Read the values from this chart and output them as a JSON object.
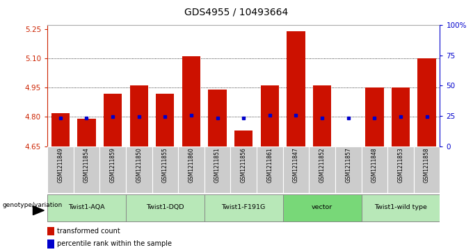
{
  "title": "GDS4955 / 10493664",
  "samples": [
    "GSM1211849",
    "GSM1211854",
    "GSM1211859",
    "GSM1211850",
    "GSM1211855",
    "GSM1211860",
    "GSM1211851",
    "GSM1211856",
    "GSM1211861",
    "GSM1211847",
    "GSM1211852",
    "GSM1211857",
    "GSM1211848",
    "GSM1211853",
    "GSM1211858"
  ],
  "red_values": [
    4.82,
    4.79,
    4.92,
    4.96,
    4.92,
    5.11,
    4.94,
    4.73,
    4.96,
    5.24,
    4.96,
    4.65,
    4.95,
    4.95,
    5.1
  ],
  "blue_values": [
    4.793,
    4.793,
    4.8,
    4.8,
    4.8,
    4.807,
    4.793,
    4.793,
    4.807,
    4.807,
    4.793,
    4.793,
    4.793,
    4.8,
    4.8
  ],
  "groups": [
    {
      "label": "Twist1-AQA",
      "indices": [
        0,
        1,
        2
      ],
      "color": "#b8e8b8"
    },
    {
      "label": "Twist1-DQD",
      "indices": [
        3,
        4,
        5
      ],
      "color": "#b8e8b8"
    },
    {
      "label": "Twist1-F191G",
      "indices": [
        6,
        7,
        8
      ],
      "color": "#b8e8b8"
    },
    {
      "label": "vector",
      "indices": [
        9,
        10,
        11
      ],
      "color": "#78d878"
    },
    {
      "label": "Twist1-wild type",
      "indices": [
        12,
        13,
        14
      ],
      "color": "#b8e8b8"
    }
  ],
  "ylim_left": [
    4.65,
    5.27
  ],
  "ylim_right": [
    0,
    100
  ],
  "yticks_left": [
    4.65,
    4.8,
    4.95,
    5.1,
    5.25
  ],
  "yticks_right": [
    0,
    25,
    50,
    75,
    100
  ],
  "ytick_labels_right": [
    "0",
    "25",
    "50",
    "75",
    "100%"
  ],
  "bar_bottom": 4.65,
  "bar_color": "#cc1100",
  "blue_color": "#0000cc",
  "sample_bg": "#cccccc",
  "label_color_left": "#cc2200",
  "label_color_right": "#0000cc",
  "genotype_label": "genotype/variation"
}
